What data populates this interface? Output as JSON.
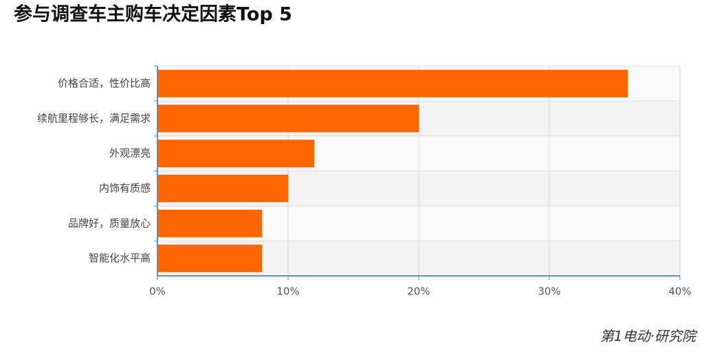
{
  "chart_data": {
    "type": "bar",
    "orientation": "horizontal",
    "title": "参与调查车主购车决定因素Top 5",
    "categories": [
      "价格合适，性价比高",
      "续航里程够长，满足需求",
      "外观漂亮",
      "内饰有质感",
      "品牌好，质量放心",
      "智能化水平高"
    ],
    "values": [
      36,
      20,
      12,
      10,
      8,
      8
    ],
    "color": "#ff6600",
    "xlim": [
      0,
      40
    ],
    "xticks": [
      {
        "value": 0,
        "label": "0%"
      },
      {
        "value": 10,
        "label": "10%"
      },
      {
        "value": 20,
        "label": "20%"
      },
      {
        "value": 30,
        "label": "30%"
      },
      {
        "value": 40,
        "label": "40%"
      }
    ],
    "grid": true
  },
  "brand": "第1电动·研究院"
}
